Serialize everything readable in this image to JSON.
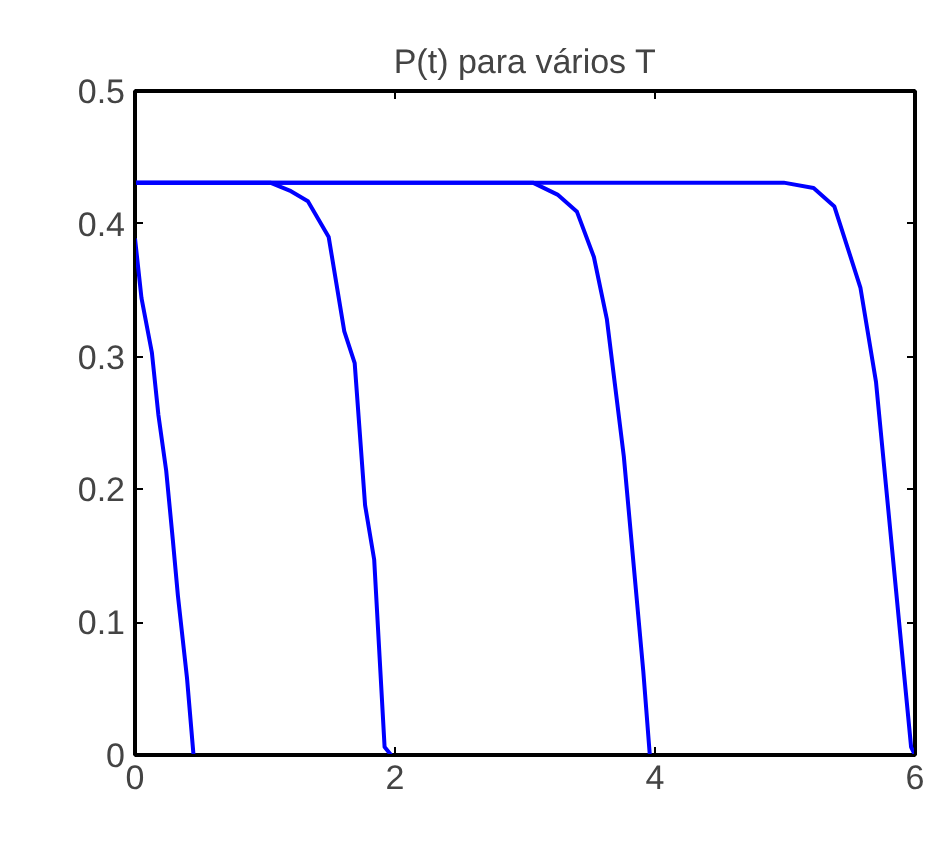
{
  "chart_data": {
    "type": "line",
    "title": "P(t) para vários T",
    "xlim": [
      0,
      6
    ],
    "ylim": [
      0,
      0.5
    ],
    "xticks": [
      0,
      2,
      4,
      6
    ],
    "yticks": [
      0,
      0.1,
      0.2,
      0.3,
      0.4,
      0.5
    ],
    "grid": false,
    "line_style": "solid",
    "series": [
      {
        "color": "#0000ff",
        "x": [
          0,
          0.05,
          0.13,
          0.18,
          0.24,
          0.29,
          0.33,
          0.4,
          0.45
        ],
        "values": [
          0.389,
          0.344,
          0.303,
          0.256,
          0.214,
          0.163,
          0.12,
          0.058,
          0
        ]
      },
      {
        "color": "#0000ff",
        "x": [
          0,
          1.04,
          1.19,
          1.33,
          1.49,
          1.61,
          1.69,
          1.77,
          1.84,
          1.92,
          1.97
        ],
        "values": [
          0.431,
          0.431,
          0.425,
          0.417,
          0.39,
          0.319,
          0.295,
          0.188,
          0.147,
          0.006,
          0
        ]
      },
      {
        "color": "#0000ff",
        "x": [
          0,
          3.06,
          3.25,
          3.4,
          3.53,
          3.63,
          3.76,
          3.91,
          3.96
        ],
        "values": [
          0.431,
          0.431,
          0.422,
          0.409,
          0.375,
          0.328,
          0.225,
          0.063,
          0
        ]
      },
      {
        "color": "#0000ff",
        "x": [
          0,
          4.99,
          5.22,
          5.38,
          5.58,
          5.7,
          5.97,
          6
        ],
        "values": [
          0.431,
          0.431,
          0.427,
          0.413,
          0.352,
          0.281,
          0.006,
          0
        ]
      }
    ]
  }
}
